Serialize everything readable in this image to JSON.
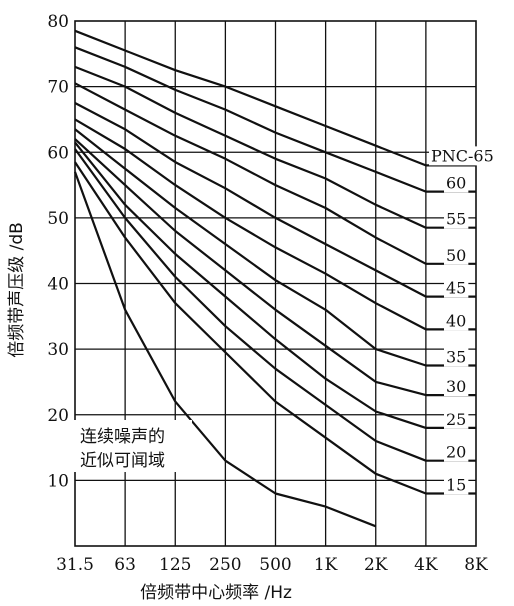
{
  "chart_data": {
    "type": "line",
    "title": "",
    "xlabel": "倍频带中心频率 /Hz",
    "ylabel": "倍频带声压级 /dB",
    "categories": [
      "31.5",
      "63",
      "125",
      "250",
      "500",
      "1K",
      "2K",
      "4K",
      "8K"
    ],
    "yticks": [
      10,
      20,
      30,
      40,
      50,
      60,
      70,
      80
    ],
    "ylim": [
      0,
      80
    ],
    "grid": true,
    "series": [
      {
        "name": "PNC-65",
        "values": [
          78.5,
          75.5,
          72.5,
          70,
          67,
          64,
          61,
          58,
          58
        ]
      },
      {
        "name": "60",
        "values": [
          76,
          73,
          69.5,
          66.5,
          63,
          60,
          57,
          54,
          54
        ]
      },
      {
        "name": "55",
        "values": [
          73,
          70,
          66,
          62.5,
          59,
          56,
          52,
          48.5,
          48.5
        ]
      },
      {
        "name": "50",
        "values": [
          70.5,
          66.5,
          62.5,
          59,
          55,
          51.5,
          47,
          43,
          43
        ]
      },
      {
        "name": "45",
        "values": [
          67.5,
          63.5,
          58.5,
          54.5,
          50,
          46,
          42,
          38,
          38
        ]
      },
      {
        "name": "40",
        "values": [
          65,
          60.5,
          55,
          50,
          45.5,
          41.5,
          37,
          33,
          33
        ]
      },
      {
        "name": "35",
        "values": [
          63.5,
          57.5,
          51.5,
          46,
          40.5,
          36,
          30,
          27.5,
          27.5
        ]
      },
      {
        "name": "30",
        "values": [
          62,
          55,
          48,
          42,
          36,
          30.5,
          25,
          23,
          23
        ]
      },
      {
        "name": "25",
        "values": [
          61.5,
          52,
          44.5,
          38,
          31.5,
          25.5,
          20.5,
          18,
          18
        ]
      },
      {
        "name": "20",
        "values": [
          60.5,
          50,
          41,
          33.5,
          27,
          21.5,
          16,
          13,
          13
        ]
      },
      {
        "name": "15",
        "values": [
          58.5,
          47,
          37,
          29.5,
          22,
          16.5,
          11,
          8,
          8
        ]
      }
    ],
    "threshold_curve": {
      "name": "连续噪声的近似可闻域",
      "points": [
        [
          "31.5",
          57
        ],
        [
          "63",
          36
        ],
        [
          "125",
          22
        ],
        [
          "250",
          13
        ],
        [
          "500",
          8
        ],
        [
          "1K",
          6
        ],
        [
          "2K",
          3
        ]
      ]
    },
    "annotation_lines": [
      "连续噪声的",
      "近似可闻域"
    ]
  }
}
